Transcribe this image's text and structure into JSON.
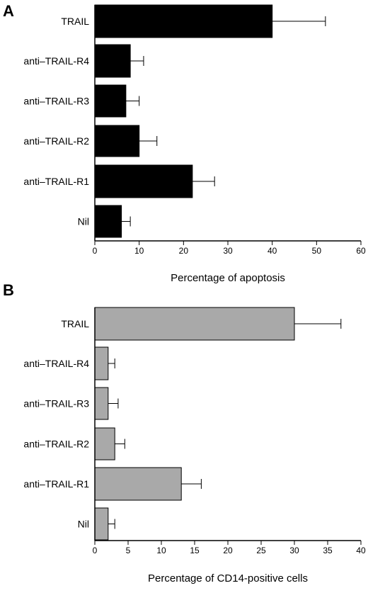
{
  "chart_data": [
    {
      "panel": "A",
      "type": "bar",
      "orientation": "horizontal",
      "categories": [
        "TRAIL",
        "anti–TRAIL-R4",
        "anti–TRAIL-R3",
        "anti–TRAIL-R2",
        "anti–TRAIL-R1",
        "Nil"
      ],
      "values": [
        40,
        8,
        7,
        10,
        22,
        6
      ],
      "errors": [
        12,
        3,
        3,
        4,
        5,
        2
      ],
      "xlabel": "Percentage of apoptosis",
      "ylabel": "",
      "xlim": [
        0,
        60
      ],
      "xticks": [
        "0",
        "10",
        "20",
        "30",
        "40",
        "50",
        "60"
      ],
      "bar_color": "#000000",
      "grid": false
    },
    {
      "panel": "B",
      "type": "bar",
      "orientation": "horizontal",
      "categories": [
        "TRAIL",
        "anti–TRAIL-R4",
        "anti–TRAIL-R3",
        "anti–TRAIL-R2",
        "anti–TRAIL-R1",
        "Nil"
      ],
      "values": [
        30,
        2,
        2,
        3,
        13,
        2
      ],
      "errors": [
        7,
        1,
        1.5,
        1.5,
        3,
        1
      ],
      "xlabel": "Percentage of CD14-positive cells",
      "ylabel": "",
      "xlim": [
        0,
        40
      ],
      "xticks": [
        "0",
        "5",
        "10",
        "15",
        "20",
        "25",
        "30",
        "35",
        "40"
      ],
      "bar_color": "#a9a9a9",
      "grid": false
    }
  ]
}
